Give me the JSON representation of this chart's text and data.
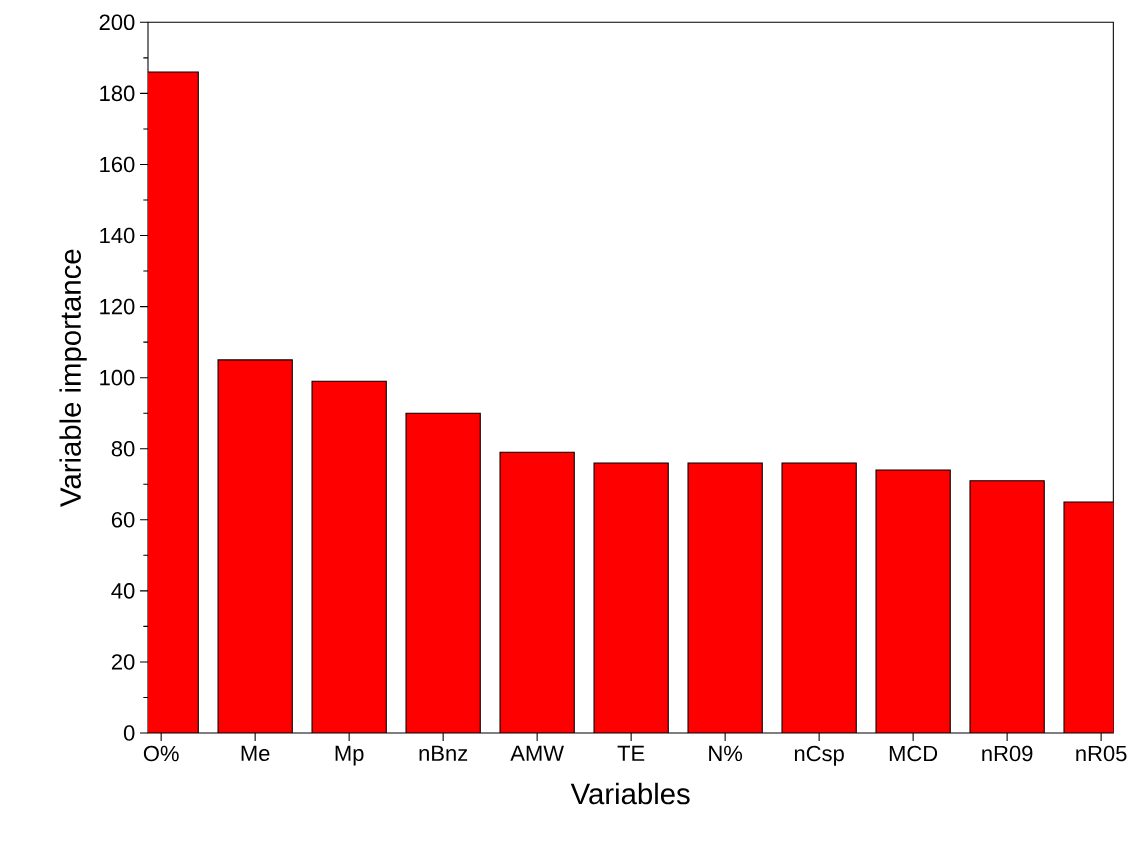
{
  "chart_data": {
    "type": "bar",
    "xlabel": "Variables",
    "ylabel": "Variable importance",
    "categories": [
      "O%",
      "Me",
      "Mp",
      "nBnz",
      "AMW",
      "TE",
      "N%",
      "nCsp",
      "MCD",
      "nR09",
      "nR05"
    ],
    "values": [
      186,
      105,
      99,
      90,
      79,
      76,
      76,
      76,
      74,
      71,
      65
    ],
    "color": "#ff0000",
    "ylim": [
      0,
      200
    ],
    "yticks": [
      0,
      20,
      40,
      60,
      80,
      100,
      120,
      140,
      160,
      180,
      200
    ]
  }
}
